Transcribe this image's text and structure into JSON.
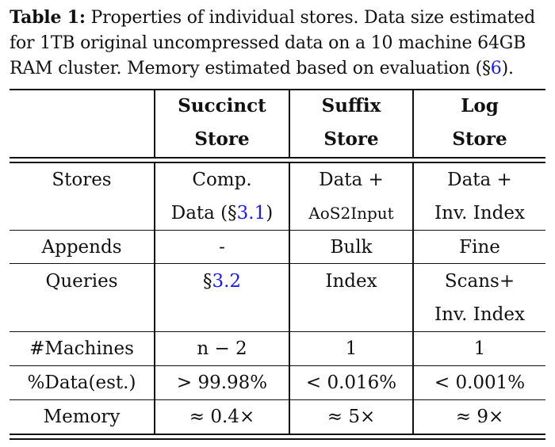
{
  "caption": {
    "label": "Table 1:",
    "text_before_ref": " Properties of individual stores. Data size estimated for 1TB original uncompressed data on a 10 machine 64GB RAM cluster. Memory estimated based on evaluation (§",
    "ref": "6",
    "text_after_ref": ")."
  },
  "table": {
    "headers": [
      {
        "line1": "",
        "line2": ""
      },
      {
        "line1": "Succinct",
        "line2": "Store"
      },
      {
        "line1": "Suffix",
        "line2": "Store"
      },
      {
        "line1": "Log",
        "line2": "Store"
      }
    ],
    "rows": {
      "stores": {
        "label": "Stores",
        "succinct_l1": "Comp.",
        "succinct_l2_pre": "Data (§",
        "succinct_l2_ref": "3.1",
        "succinct_l2_post": ")",
        "suffix_l1": "Data +",
        "suffix_l2": "AoS2Input",
        "log_l1": "Data +",
        "log_l2": "Inv. Index"
      },
      "appends": {
        "label": "Appends",
        "succinct": "-",
        "suffix": "Bulk",
        "log": "Fine"
      },
      "queries": {
        "label": "Queries",
        "succinct_pre": "§",
        "succinct_ref": "3.2",
        "suffix": "Index",
        "log_l1": "Scans+",
        "log_l2": "Inv. Index"
      },
      "machines": {
        "label": "#Machines",
        "succinct": "n − 2",
        "suffix": "1",
        "log": "1"
      },
      "data": {
        "label": "%Data(est.)",
        "succinct": "> 99.98%",
        "suffix": "< 0.016%",
        "log": "< 0.001%"
      },
      "memory": {
        "label": "Memory",
        "succinct": "≈ 0.4×",
        "suffix": "≈ 5×",
        "log": "≈ 9×"
      }
    }
  }
}
